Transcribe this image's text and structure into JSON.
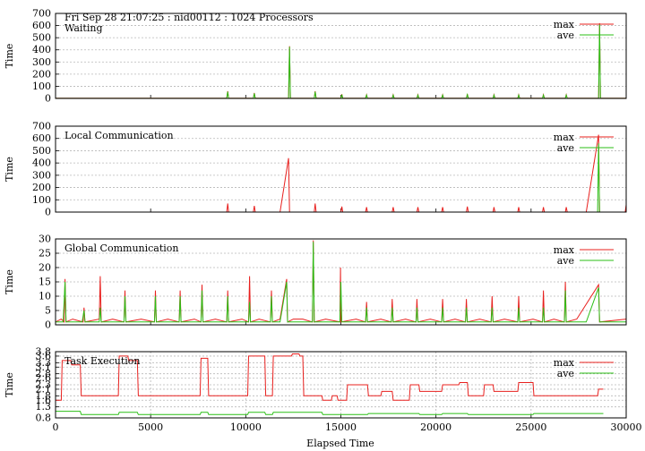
{
  "figure": {
    "header": "Fri Sep 28 21:07:25 : nid00112 : 1024 Processors",
    "xlabel": "Elapsed Time"
  },
  "chart_data": [
    {
      "type": "line",
      "title": "Waiting",
      "ylabel": "Time",
      "xlim": [
        0,
        30000
      ],
      "ylim": [
        0,
        700
      ],
      "yticks": [
        0,
        100,
        200,
        300,
        400,
        500,
        600,
        700
      ],
      "xticks": [
        0,
        5000,
        10000,
        15000,
        20000,
        25000,
        30000
      ],
      "grid": true,
      "legend": "top-right",
      "series": [
        {
          "name": "max",
          "color": "#e8201e",
          "x": [
            0,
            9000,
            9050,
            9100,
            10400,
            10450,
            10500,
            12250,
            12300,
            12350,
            13600,
            13650,
            13700,
            15000,
            15050,
            15100,
            16300,
            16350,
            16400,
            17700,
            17750,
            17800,
            19000,
            19050,
            19100,
            20300,
            20350,
            20400,
            21600,
            21650,
            21700,
            23000,
            23050,
            23100,
            24300,
            24350,
            24400,
            25600,
            25650,
            25700,
            26800,
            26850,
            26900,
            28550,
            28600,
            28650,
            30000
          ],
          "values": [
            2,
            2,
            60,
            2,
            2,
            45,
            2,
            2,
            430,
            2,
            2,
            60,
            2,
            2,
            35,
            2,
            2,
            30,
            2,
            2,
            30,
            2,
            2,
            30,
            2,
            2,
            30,
            2,
            2,
            35,
            2,
            2,
            30,
            2,
            2,
            30,
            2,
            2,
            30,
            2,
            2,
            30,
            2,
            2,
            620,
            2,
            2
          ]
        },
        {
          "name": "ave",
          "color": "#2bbf16",
          "x": [
            0,
            9000,
            9050,
            9100,
            10400,
            10450,
            10500,
            12250,
            12300,
            12350,
            13600,
            13650,
            13700,
            15000,
            15050,
            15100,
            16300,
            16350,
            16400,
            17700,
            17750,
            17800,
            19000,
            19050,
            19100,
            20300,
            20350,
            20400,
            21600,
            21650,
            21700,
            23000,
            23050,
            23100,
            24300,
            24350,
            24400,
            25600,
            25650,
            25700,
            26800,
            26850,
            26900,
            28550,
            28600,
            28650,
            30000
          ],
          "values": [
            1,
            1,
            55,
            1,
            1,
            42,
            1,
            1,
            425,
            1,
            1,
            55,
            1,
            1,
            32,
            1,
            1,
            28,
            1,
            1,
            28,
            1,
            1,
            28,
            1,
            1,
            28,
            1,
            1,
            32,
            1,
            1,
            28,
            1,
            1,
            28,
            1,
            1,
            28,
            1,
            1,
            28,
            1,
            1,
            610,
            1,
            1
          ]
        }
      ]
    },
    {
      "type": "line",
      "title": "Local Communication",
      "ylabel": "Time",
      "xlim": [
        0,
        30000
      ],
      "ylim": [
        0,
        700
      ],
      "yticks": [
        0,
        100,
        200,
        300,
        400,
        500,
        600,
        700
      ],
      "xticks": [
        0,
        5000,
        10000,
        15000,
        20000,
        25000,
        30000
      ],
      "grid": true,
      "legend": "top-right",
      "series": [
        {
          "name": "max",
          "color": "#e8201e",
          "x": [
            0,
            9000,
            9050,
            9100,
            10400,
            10450,
            10500,
            11800,
            12250,
            12300,
            13600,
            13650,
            13700,
            15000,
            15050,
            15100,
            16300,
            16350,
            16400,
            17700,
            17750,
            17800,
            19000,
            19050,
            19100,
            20300,
            20350,
            20400,
            21600,
            21650,
            21700,
            23000,
            23050,
            23100,
            24300,
            24350,
            24400,
            25600,
            25650,
            25700,
            26800,
            26850,
            26900,
            27900,
            28550,
            28600,
            29950,
            30000
          ],
          "values": [
            0,
            0,
            70,
            0,
            0,
            50,
            0,
            0,
            440,
            0,
            0,
            70,
            0,
            0,
            45,
            0,
            0,
            40,
            0,
            0,
            40,
            0,
            0,
            40,
            0,
            0,
            40,
            0,
            0,
            45,
            0,
            0,
            40,
            0,
            0,
            40,
            0,
            0,
            40,
            0,
            0,
            40,
            0,
            0,
            630,
            0,
            0,
            60
          ]
        },
        {
          "name": "ave",
          "color": "#2bbf16",
          "x": [
            0,
            28500,
            28550,
            28600,
            30000
          ],
          "values": [
            0,
            0,
            560,
            0,
            0
          ]
        }
      ]
    },
    {
      "type": "line",
      "title": "Global Communication",
      "ylabel": "Time",
      "xlim": [
        0,
        30000
      ],
      "ylim": [
        0,
        30
      ],
      "yticks": [
        0,
        5,
        10,
        15,
        20,
        25,
        30
      ],
      "xticks": [
        0,
        5000,
        10000,
        15000,
        20000,
        25000,
        30000
      ],
      "grid": true,
      "legend": "top-right",
      "series": [
        {
          "name": "max",
          "color": "#e8201e",
          "x": [
            0,
            300,
            450,
            500,
            550,
            900,
            1450,
            1500,
            1550,
            2300,
            2350,
            2400,
            3000,
            3600,
            3650,
            3700,
            4500,
            5200,
            5250,
            5300,
            5900,
            6500,
            6550,
            6600,
            7300,
            7650,
            7700,
            7750,
            8400,
            9000,
            9050,
            9100,
            9800,
            10150,
            10200,
            10250,
            10700,
            11300,
            11350,
            11400,
            11800,
            12150,
            12200,
            12500,
            13000,
            13500,
            13550,
            13600,
            14200,
            14950,
            14980,
            15000,
            15800,
            16300,
            16350,
            16400,
            17100,
            17650,
            17700,
            17750,
            18400,
            18950,
            19000,
            19050,
            19700,
            20300,
            20350,
            20400,
            21000,
            21550,
            21600,
            21650,
            22300,
            22900,
            22950,
            23000,
            23600,
            24300,
            24350,
            24400,
            25100,
            25600,
            25650,
            25700,
            26200,
            26750,
            26800,
            26850,
            27400,
            28550,
            28600,
            30000
          ],
          "values": [
            1,
            2,
            1,
            16,
            1,
            2,
            1,
            6,
            1,
            2,
            17,
            1,
            2,
            1,
            12,
            1,
            2,
            1,
            12,
            1,
            2,
            1,
            12,
            1,
            2,
            1,
            14,
            1,
            2,
            1,
            12,
            1,
            2,
            1,
            17,
            1,
            2,
            1,
            12,
            1,
            2,
            16,
            1,
            2,
            2,
            1,
            29.5,
            1,
            2,
            1,
            20,
            1,
            2,
            1,
            8,
            1,
            2,
            1,
            9,
            1,
            2,
            1,
            9,
            1,
            2,
            1,
            9,
            1,
            2,
            1,
            9,
            1,
            2,
            1,
            10,
            1,
            2,
            1,
            10,
            1,
            2,
            1,
            12,
            1,
            2,
            1,
            15,
            1,
            2,
            14,
            1,
            2
          ]
        },
        {
          "name": "ave",
          "color": "#2bbf16",
          "x": [
            0,
            400,
            500,
            550,
            1400,
            1500,
            1550,
            2300,
            2350,
            2400,
            3600,
            3650,
            3700,
            5200,
            5250,
            5300,
            6500,
            6550,
            6600,
            7650,
            7700,
            7750,
            9000,
            9050,
            9100,
            10150,
            10200,
            10250,
            11300,
            11350,
            11400,
            11800,
            12150,
            12200,
            13500,
            13550,
            13600,
            14950,
            15000,
            15050,
            16300,
            16350,
            16400,
            17650,
            17700,
            17750,
            18950,
            19000,
            19050,
            20300,
            20350,
            20400,
            21550,
            21600,
            21650,
            22900,
            22950,
            23000,
            24300,
            24350,
            24400,
            25600,
            25650,
            25700,
            26750,
            26800,
            26850,
            27900,
            28550,
            28600,
            30000
          ],
          "values": [
            1,
            1,
            15,
            1,
            1,
            5,
            1,
            1,
            6,
            1,
            1,
            10,
            1,
            1,
            10,
            1,
            1,
            10,
            1,
            1,
            12,
            1,
            1,
            10,
            1,
            1,
            8,
            1,
            1,
            10,
            1,
            1,
            15,
            1,
            1,
            29,
            1,
            1,
            15,
            1,
            1,
            6,
            1,
            1,
            6,
            1,
            1,
            6,
            1,
            1,
            6,
            1,
            1,
            6,
            1,
            1,
            6,
            1,
            1,
            6,
            1,
            1,
            6,
            1,
            1,
            12,
            1,
            1,
            13,
            1,
            1
          ]
        }
      ]
    },
    {
      "type": "line",
      "title": "Task Execution",
      "ylabel": "Time",
      "xlim": [
        0,
        30000
      ],
      "ylim": [
        0.8,
        3.8
      ],
      "yticks": [
        0.8,
        1.3,
        1.6,
        1.8,
        2.1,
        2.3,
        2.6,
        2.8,
        3.1,
        3.3,
        3.6,
        3.8
      ],
      "yticklabels": [
        "0.8",
        "1.3",
        "1.6",
        "1.8",
        "2.1",
        "2.3",
        "2.6",
        "2.8",
        "3.1",
        "3.3",
        "3.6",
        "3.8"
      ],
      "xticks": [
        0,
        5000,
        10000,
        15000,
        20000,
        25000,
        30000
      ],
      "xticklabels": [
        "0",
        "5000",
        "10000",
        "15000",
        "20000",
        "25000",
        "30000"
      ],
      "grid": true,
      "legend": "top-right",
      "series": [
        {
          "name": "max",
          "color": "#e8201e",
          "x": [
            0,
            300,
            350,
            800,
            850,
            1300,
            1350,
            3300,
            3350,
            3800,
            3850,
            4300,
            4350,
            7600,
            7650,
            8000,
            8050,
            10100,
            10150,
            11000,
            11050,
            11400,
            11450,
            12400,
            12450,
            12800,
            12850,
            13000,
            13050,
            14000,
            14050,
            14500,
            14550,
            14800,
            14850,
            15300,
            15350,
            16400,
            16450,
            17100,
            17150,
            17700,
            17750,
            18600,
            18650,
            19100,
            19150,
            20300,
            20350,
            21200,
            21250,
            21650,
            21700,
            22500,
            22550,
            23000,
            23050,
            23800,
            23850,
            24300,
            24350,
            25100,
            25150,
            25600,
            25650,
            28500,
            28550,
            28800
          ],
          "values": [
            1.6,
            1.6,
            3.4,
            3.4,
            3.2,
            3.2,
            1.8,
            1.8,
            3.6,
            3.6,
            3.4,
            3.4,
            1.8,
            1.8,
            3.5,
            3.5,
            1.8,
            1.8,
            3.6,
            3.6,
            1.8,
            1.8,
            3.6,
            3.6,
            3.7,
            3.7,
            3.6,
            3.6,
            1.8,
            1.8,
            1.6,
            1.6,
            1.8,
            1.8,
            1.6,
            1.6,
            2.3,
            2.3,
            1.8,
            1.8,
            2.0,
            2.0,
            1.6,
            1.6,
            2.3,
            2.3,
            2.0,
            2.0,
            2.3,
            2.3,
            2.4,
            2.4,
            1.8,
            1.8,
            2.3,
            2.3,
            2.0,
            2.0,
            2.0,
            2.0,
            2.4,
            2.4,
            1.8,
            1.8,
            1.8,
            1.8,
            2.1,
            2.1
          ]
        },
        {
          "name": "ave",
          "color": "#2bbf16",
          "x": [
            0,
            300,
            350,
            1300,
            1350,
            3300,
            3350,
            4300,
            4350,
            7600,
            7650,
            8000,
            8050,
            10100,
            10150,
            11000,
            11050,
            11400,
            11450,
            14000,
            14050,
            16400,
            16450,
            19100,
            19150,
            20300,
            20350,
            21650,
            21700,
            25100,
            25150,
            28800
          ],
          "values": [
            1.1,
            1.1,
            1.1,
            1.1,
            0.95,
            0.95,
            1.05,
            1.05,
            0.95,
            0.95,
            1.05,
            1.05,
            0.95,
            0.95,
            1.05,
            1.05,
            0.95,
            0.95,
            1.05,
            1.05,
            0.95,
            0.95,
            1.0,
            1.0,
            0.95,
            0.95,
            1.0,
            1.0,
            0.95,
            0.95,
            1.0,
            1.0
          ]
        }
      ]
    }
  ]
}
